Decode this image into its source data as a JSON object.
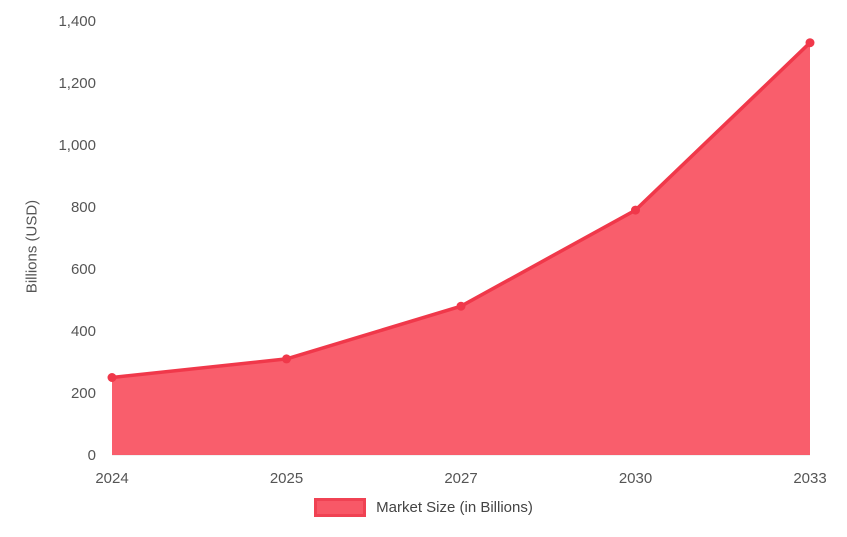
{
  "chart_data": {
    "type": "area",
    "categories": [
      "2024",
      "2025",
      "2027",
      "2030",
      "2033"
    ],
    "series": [
      {
        "name": "Market Size (in Billions)",
        "values": [
          250,
          310,
          480,
          790,
          1330
        ]
      }
    ],
    "title": "",
    "xlabel": "",
    "ylabel": "Billions (USD)",
    "ylim": [
      0,
      1400
    ],
    "ytick_step": 200,
    "grid": false,
    "legend_position": "bottom",
    "colors": {
      "line": "#f0384a",
      "fill": "#f8505f",
      "fill_opacity": 0.92,
      "tick_text": "#555555",
      "axis_line": "#e3e3e3"
    }
  },
  "legend": {
    "label": "Market Size (in Billions)"
  }
}
